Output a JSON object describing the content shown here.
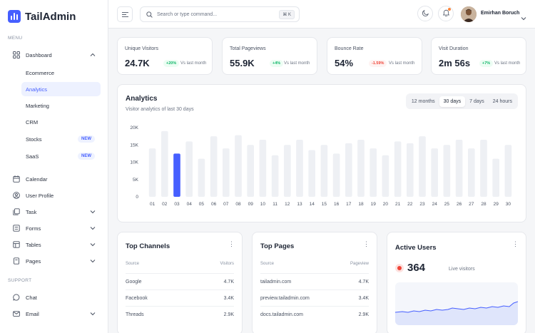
{
  "brand": {
    "name": "TailAdmin"
  },
  "sidebar": {
    "menu_label": "MENU",
    "support_label": "SUPPORT",
    "dashboard": {
      "label": "Dashboard"
    },
    "subitems": [
      "Ecommerce",
      "Analytics",
      "Marketing",
      "CRM",
      "Stocks",
      "SaaS"
    ],
    "new_badge": "NEW",
    "items": [
      {
        "label": "Calendar",
        "icon": "calendar-icon"
      },
      {
        "label": "User Profile",
        "icon": "user-icon"
      },
      {
        "label": "Task",
        "icon": "task-icon"
      },
      {
        "label": "Forms",
        "icon": "forms-icon"
      },
      {
        "label": "Tables",
        "icon": "table-icon"
      },
      {
        "label": "Pages",
        "icon": "pages-icon"
      }
    ],
    "support_items": [
      {
        "label": "Chat",
        "icon": "chat-icon"
      },
      {
        "label": "Email",
        "icon": "mail-icon"
      }
    ]
  },
  "header": {
    "search_placeholder": "Search or type command...",
    "shortcut": "⌘ K",
    "user_name": "Emirhan Boruch"
  },
  "metrics": [
    {
      "title": "Unique Visitors",
      "value": "24.7K",
      "change": "+20%",
      "direction": "up",
      "vs": "Vs last month"
    },
    {
      "title": "Total Pageviews",
      "value": "55.9K",
      "change": "+4%",
      "direction": "up",
      "vs": "Vs last month"
    },
    {
      "title": "Bounce Rate",
      "value": "54%",
      "change": "-1.59%",
      "direction": "down",
      "vs": "Vs last month"
    },
    {
      "title": "Visit Duration",
      "value": "2m 56s",
      "change": "+7%",
      "direction": "up",
      "vs": "Vs last month"
    }
  ],
  "analytics": {
    "title": "Analytics",
    "subtitle": "Visitor analytics of last 30 days",
    "tabs": [
      "12 months",
      "30 days",
      "7 days",
      "24 hours"
    ],
    "active_tab": "30 days"
  },
  "chart_data": {
    "type": "bar",
    "categories": [
      "01",
      "02",
      "03",
      "04",
      "05",
      "06",
      "07",
      "08",
      "09",
      "10",
      "11",
      "12",
      "13",
      "14",
      "15",
      "16",
      "17",
      "18",
      "19",
      "20",
      "21",
      "22",
      "23",
      "24",
      "25",
      "26",
      "27",
      "28",
      "29",
      "30"
    ],
    "values": [
      14000,
      19000,
      12500,
      16000,
      11000,
      17500,
      14000,
      17800,
      15000,
      16500,
      12000,
      15000,
      16500,
      13500,
      15000,
      12500,
      15500,
      16500,
      14000,
      12000,
      16000,
      15500,
      17500,
      14000,
      15000,
      16500,
      14000,
      16500,
      11000,
      15000
    ],
    "highlight_index": 2,
    "ylim": [
      0,
      20000
    ],
    "yticks": [
      "0",
      "5K",
      "10K",
      "15K",
      "20K"
    ],
    "colors": {
      "bar": "#eef0f4",
      "highlight": "#465fff"
    }
  },
  "top_channels": {
    "title": "Top Channels",
    "col_left": "Source",
    "col_right": "Visitors",
    "rows": [
      {
        "name": "Google",
        "value": "4.7K"
      },
      {
        "name": "Facebook",
        "value": "3.4K"
      },
      {
        "name": "Threads",
        "value": "2.9K"
      }
    ]
  },
  "top_pages": {
    "title": "Top Pages",
    "col_left": "Source",
    "col_right": "Pageview",
    "rows": [
      {
        "name": "tailadmin.com",
        "value": "4.7K"
      },
      {
        "name": "preview.tailadmin.com",
        "value": "3.4K"
      },
      {
        "name": "docs.tailadmin.com",
        "value": "2.9K"
      }
    ]
  },
  "active_users": {
    "title": "Active Users",
    "value": "364",
    "label": "Live visitors"
  }
}
